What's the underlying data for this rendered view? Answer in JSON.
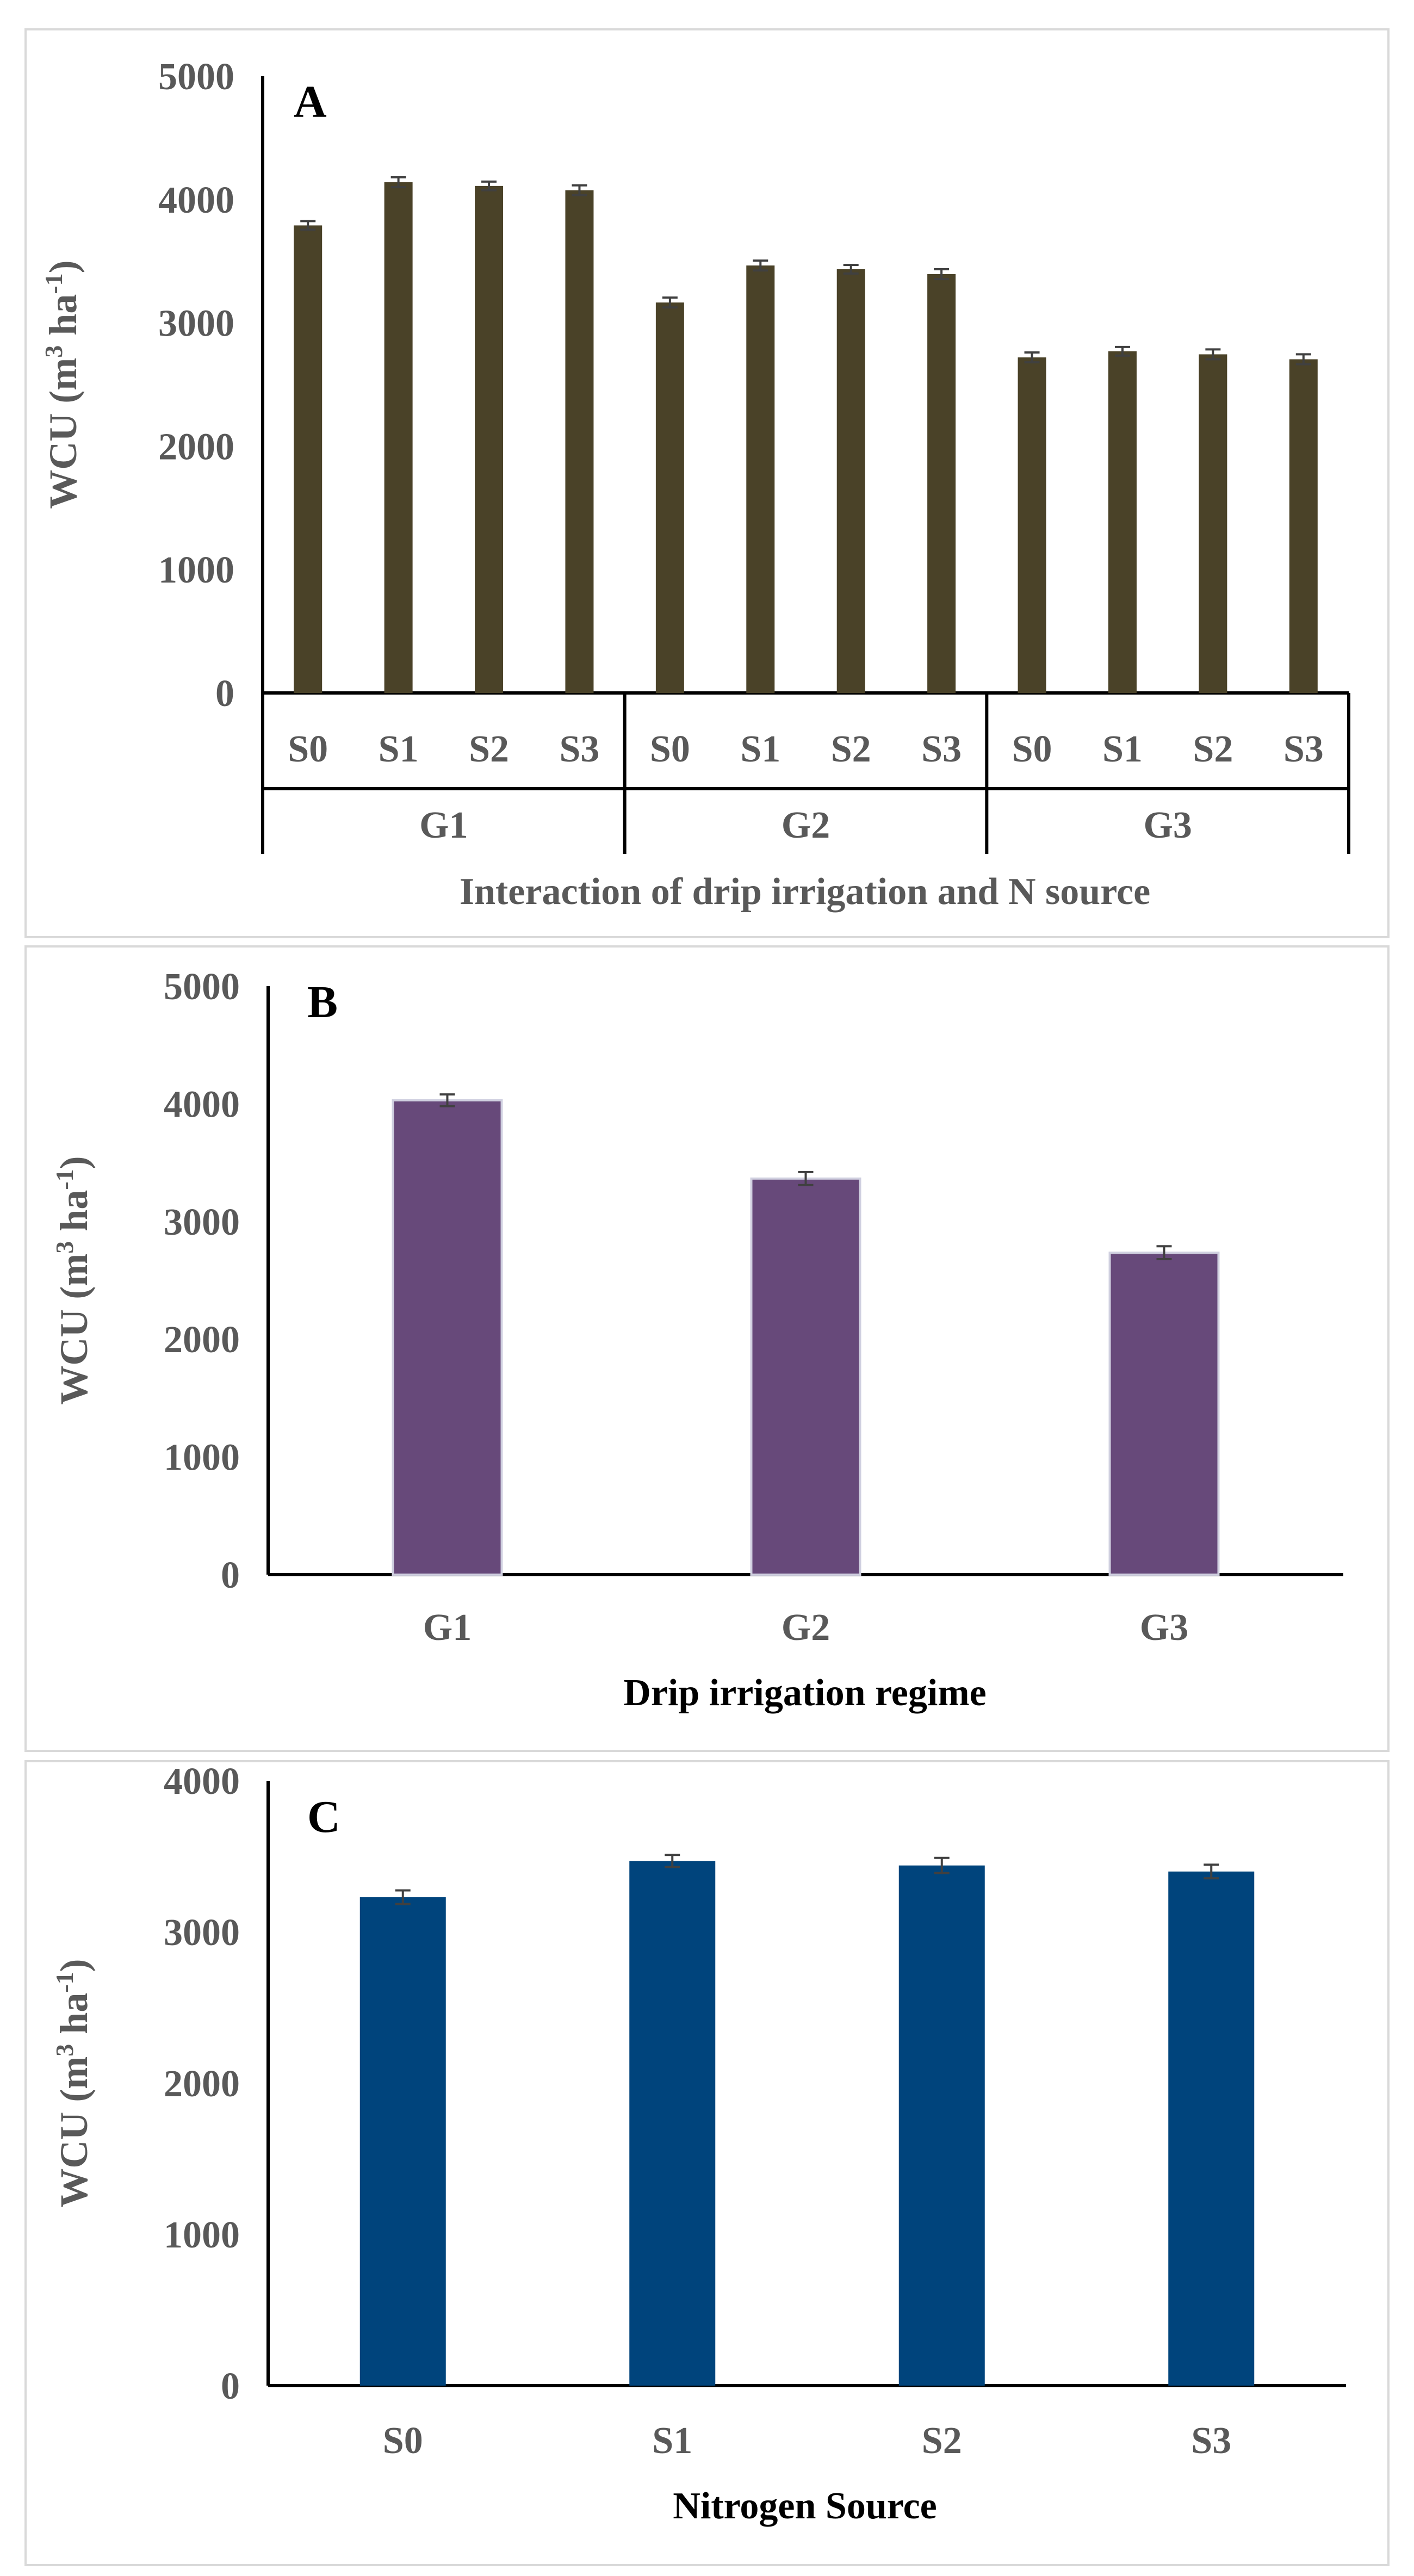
{
  "chart_data": [
    {
      "type": "bar",
      "panel_label": "A",
      "title": "",
      "xlabel": "Interaction  of drip irrigation and N source",
      "ylabel_prefix": "WCU (m",
      "ylabel_sup1": "3",
      "ylabel_mid": " ha",
      "ylabel_sup2": "-1",
      "ylabel_suffix": ")",
      "ylim": [
        0,
        5000
      ],
      "yticks": [
        0,
        1000,
        2000,
        3000,
        4000,
        5000
      ],
      "groups": [
        "G1",
        "G2",
        "G3"
      ],
      "categories": [
        "S0",
        "S1",
        "S2",
        "S3",
        "S0",
        "S1",
        "S2",
        "S3",
        "S0",
        "S1",
        "S2",
        "S3"
      ],
      "values": [
        3790,
        4140,
        4110,
        4075,
        3165,
        3465,
        3435,
        3395,
        2720,
        2770,
        2745,
        2705
      ],
      "errors": [
        35,
        40,
        35,
        40,
        40,
        40,
        35,
        40,
        40,
        35,
        40,
        40
      ],
      "color": "#4a4228"
    },
    {
      "type": "bar",
      "panel_label": "B",
      "title": "",
      "xlabel": "Drip irrigation regime",
      "ylabel_prefix": "WCU (m",
      "ylabel_sup1": "3",
      "ylabel_mid": " ha",
      "ylabel_sup2": "-1",
      "ylabel_suffix": ")",
      "ylim": [
        0,
        5000
      ],
      "yticks": [
        0,
        1000,
        2000,
        3000,
        4000,
        5000
      ],
      "categories": [
        "G1",
        "G2",
        "G3"
      ],
      "values": [
        4030,
        3365,
        2735
      ],
      "errors": [
        50,
        55,
        55
      ],
      "color": "#67497a"
    },
    {
      "type": "bar",
      "panel_label": "C",
      "title": "",
      "xlabel": "Nitrogen Source",
      "ylabel_prefix": "WCU (m",
      "ylabel_sup1": "3",
      "ylabel_mid": " ha",
      "ylabel_sup2": "-1",
      "ylabel_suffix": ")",
      "ylim": [
        0,
        4000
      ],
      "yticks": [
        0,
        1000,
        2000,
        3000,
        4000
      ],
      "categories": [
        "S0",
        "S1",
        "S2",
        "S3"
      ],
      "values": [
        3230,
        3470,
        3440,
        3400
      ],
      "errors": [
        45,
        40,
        50,
        45
      ],
      "color": "#00447c"
    }
  ]
}
